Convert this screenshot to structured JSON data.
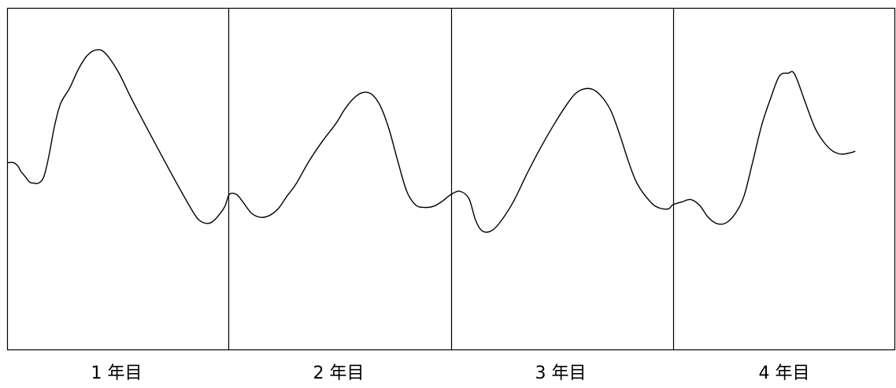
{
  "chart_data": {
    "type": "line",
    "title": "",
    "xlabel": "",
    "ylabel": "",
    "grid": false,
    "legend": "none",
    "colors": {
      "line": "#000000",
      "frame": "#000000",
      "background": "#ffffff"
    },
    "categories": [
      "1 年目",
      "2 年目",
      "3 年目",
      "4 年目"
    ],
    "series": [
      {
        "name": "",
        "points": [
          [
            0.0,
            0.452
          ],
          [
            0.014,
            0.452
          ],
          [
            0.024,
            0.463
          ],
          [
            0.03,
            0.477
          ],
          [
            0.04,
            0.493
          ],
          [
            0.05,
            0.509
          ],
          [
            0.06,
            0.512
          ],
          [
            0.07,
            0.512
          ],
          [
            0.082,
            0.493
          ],
          [
            0.094,
            0.428
          ],
          [
            0.106,
            0.345
          ],
          [
            0.12,
            0.278
          ],
          [
            0.14,
            0.234
          ],
          [
            0.16,
            0.178
          ],
          [
            0.18,
            0.138
          ],
          [
            0.2,
            0.122
          ],
          [
            0.22,
            0.131
          ],
          [
            0.25,
            0.187
          ],
          [
            0.28,
            0.266
          ],
          [
            0.33,
            0.389
          ],
          [
            0.38,
            0.509
          ],
          [
            0.42,
            0.6
          ],
          [
            0.435,
            0.623
          ],
          [
            0.45,
            0.63
          ],
          [
            0.462,
            0.625
          ],
          [
            0.475,
            0.608
          ],
          [
            0.49,
            0.58
          ]
        ]
      },
      {
        "name": "",
        "points": [
          [
            0.5,
            0.545
          ],
          [
            0.516,
            0.545
          ],
          [
            0.53,
            0.566
          ],
          [
            0.55,
            0.6
          ],
          [
            0.57,
            0.612
          ],
          [
            0.59,
            0.607
          ],
          [
            0.61,
            0.587
          ],
          [
            0.63,
            0.55
          ],
          [
            0.65,
            0.515
          ],
          [
            0.68,
            0.447
          ],
          [
            0.71,
            0.389
          ],
          [
            0.74,
            0.338
          ],
          [
            0.76,
            0.296
          ],
          [
            0.78,
            0.264
          ],
          [
            0.8,
            0.247
          ],
          [
            0.82,
            0.251
          ],
          [
            0.84,
            0.285
          ],
          [
            0.86,
            0.354
          ],
          [
            0.88,
            0.449
          ],
          [
            0.9,
            0.536
          ],
          [
            0.92,
            0.576
          ],
          [
            0.94,
            0.583
          ],
          [
            0.96,
            0.58
          ],
          [
            0.98,
            0.565
          ]
        ]
      },
      {
        "name": "",
        "points": [
          [
            1.0,
            0.545
          ],
          [
            1.02,
            0.536
          ],
          [
            1.04,
            0.557
          ],
          [
            1.055,
            0.62
          ],
          [
            1.07,
            0.652
          ],
          [
            1.09,
            0.652
          ],
          [
            1.11,
            0.627
          ],
          [
            1.14,
            0.567
          ],
          [
            1.17,
            0.487
          ],
          [
            1.2,
            0.412
          ],
          [
            1.23,
            0.344
          ],
          [
            1.26,
            0.283
          ],
          [
            1.28,
            0.25
          ],
          [
            1.3,
            0.236
          ],
          [
            1.32,
            0.238
          ],
          [
            1.34,
            0.26
          ],
          [
            1.36,
            0.3
          ],
          [
            1.38,
            0.37
          ],
          [
            1.4,
            0.45
          ],
          [
            1.42,
            0.515
          ],
          [
            1.45,
            0.568
          ],
          [
            1.47,
            0.585
          ],
          [
            1.49,
            0.587
          ]
        ]
      },
      {
        "name": "",
        "points": [
          [
            1.5,
            0.575
          ],
          [
            1.52,
            0.567
          ],
          [
            1.54,
            0.56
          ],
          [
            1.56,
            0.577
          ],
          [
            1.58,
            0.613
          ],
          [
            1.6,
            0.631
          ],
          [
            1.62,
            0.628
          ],
          [
            1.64,
            0.602
          ],
          [
            1.66,
            0.55
          ],
          [
            1.68,
            0.448
          ],
          [
            1.7,
            0.342
          ],
          [
            1.72,
            0.264
          ],
          [
            1.74,
            0.198
          ],
          [
            1.76,
            0.19
          ],
          [
            1.77,
            0.186
          ],
          [
            1.78,
            0.21
          ],
          [
            1.8,
            0.282
          ],
          [
            1.82,
            0.35
          ],
          [
            1.84,
            0.392
          ],
          [
            1.86,
            0.418
          ],
          [
            1.88,
            0.427
          ],
          [
            1.9,
            0.423
          ],
          [
            1.91,
            0.419
          ]
        ]
      }
    ]
  }
}
